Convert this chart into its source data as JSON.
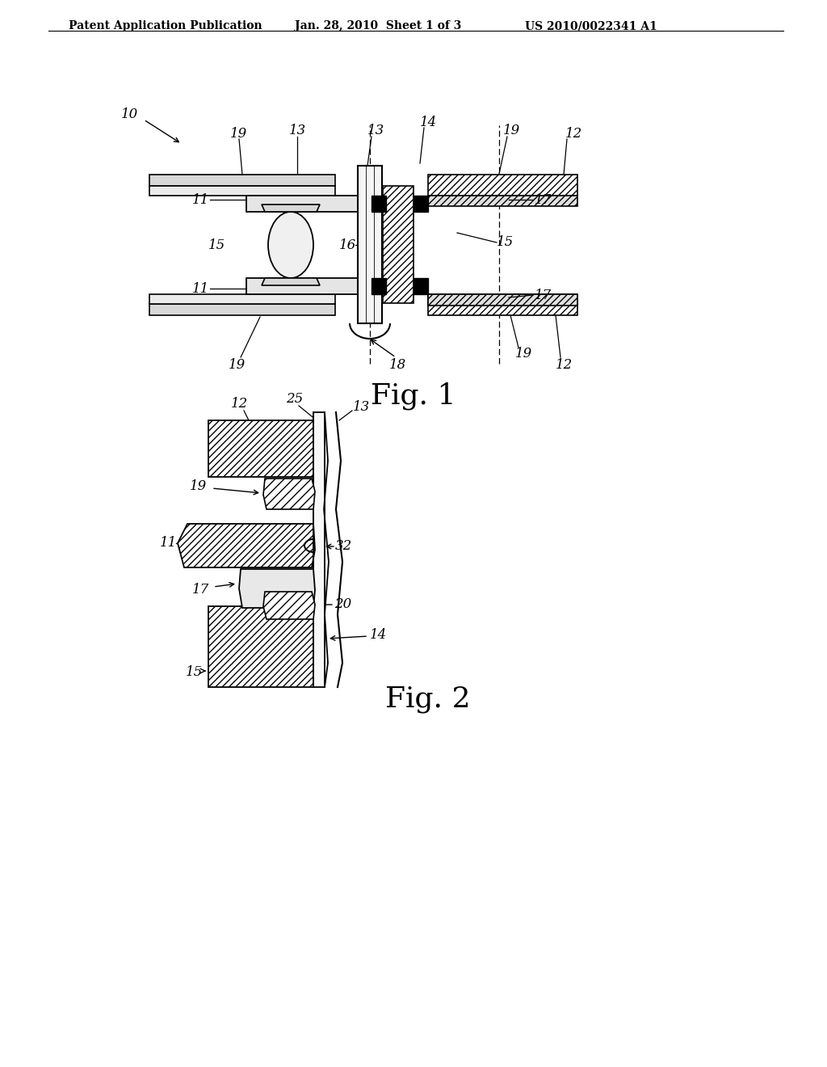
{
  "background_color": "#ffffff",
  "header_left": "Patent Application Publication",
  "header_center": "Jan. 28, 2010  Sheet 1 of 3",
  "header_right": "US 2010/0022341 A1",
  "fig1_label": "Fig. 1",
  "fig2_label": "Fig. 2",
  "header_font_size": 10,
  "annotation_font_size": 12,
  "line_color": "#000000"
}
